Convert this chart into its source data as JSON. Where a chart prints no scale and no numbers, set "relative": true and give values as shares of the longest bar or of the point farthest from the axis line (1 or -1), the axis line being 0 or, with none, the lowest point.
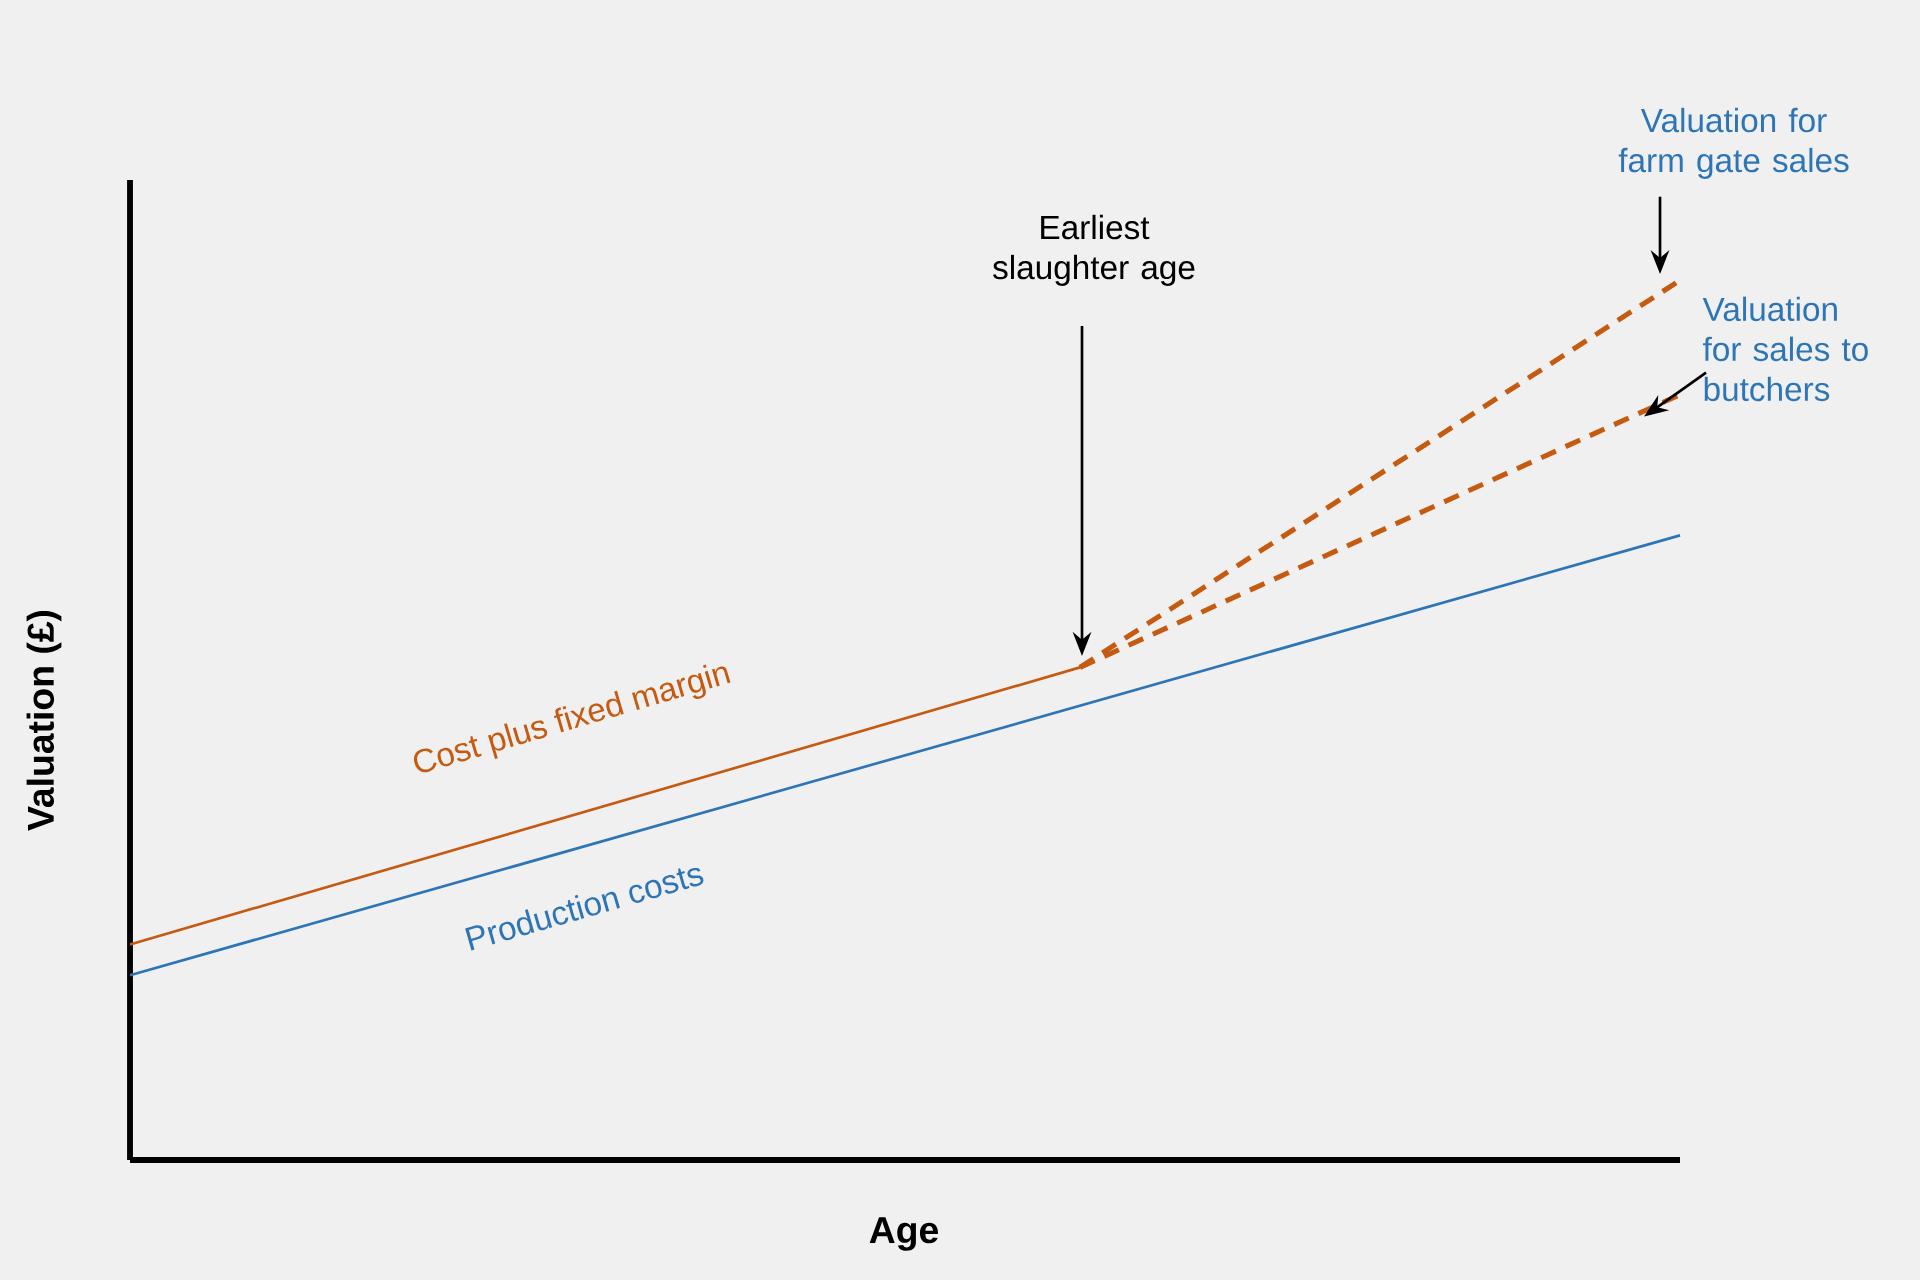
{
  "chart_data": {
    "type": "line",
    "relative": true,
    "xlabel": "Age",
    "ylabel": "Valuation (£)",
    "annotations": [
      "Earliest slaughter age",
      "Valuation for farm gate sales",
      "Valuation for sales to butchers"
    ],
    "categories": [
      null,
      null,
      null,
      null,
      null,
      null,
      null,
      null,
      null,
      null,
      null,
      null,
      null,
      null,
      null,
      null,
      null,
      null,
      null,
      null,
      null,
      null,
      null,
      null,
      null,
      null,
      null,
      null,
      null,
      null,
      null,
      null
    ],
    "series": [
      {
        "name": "Production costs",
        "color": "#2e75b6",
        "line_style": "solid",
        "values": [
          0.21,
          null,
          null,
          null,
          null,
          null,
          null,
          null,
          null,
          null,
          null,
          null,
          null,
          null,
          null,
          null,
          null,
          null,
          null,
          null,
          null,
          null,
          null,
          null,
          null,
          null,
          null,
          null,
          null,
          null,
          null,
          0.71
        ]
      },
      {
        "name": "Cost plus fixed margin",
        "color": "#c55a11",
        "line_style": "solid",
        "values": [
          0.245,
          null,
          null,
          null,
          null,
          null,
          null,
          null,
          null,
          null,
          null,
          null,
          null,
          null,
          null,
          null,
          null,
          null,
          null,
          0.56,
          null,
          null,
          null,
          null,
          null,
          null,
          null,
          null,
          null,
          null,
          null,
          null
        ]
      },
      {
        "color": "#c55a11",
        "line_style": "dashed",
        "values": [
          null,
          null,
          null,
          null,
          null,
          null,
          null,
          null,
          null,
          null,
          null,
          null,
          null,
          null,
          null,
          null,
          null,
          null,
          null,
          0.56,
          null,
          null,
          null,
          null,
          null,
          null,
          null,
          null,
          null,
          null,
          null,
          1.0
        ]
      },
      {
        "color": "#c55a11",
        "line_style": "dashed",
        "values": [
          null,
          null,
          null,
          null,
          null,
          null,
          null,
          null,
          null,
          null,
          null,
          null,
          null,
          null,
          null,
          null,
          null,
          null,
          null,
          0.56,
          null,
          null,
          null,
          null,
          null,
          null,
          null,
          null,
          null,
          null,
          null,
          0.87
        ]
      }
    ]
  }
}
